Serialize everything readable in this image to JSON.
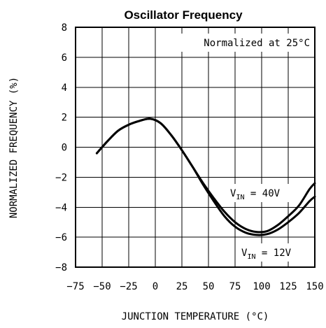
{
  "chart_data": {
    "type": "line",
    "title": "Oscillator Frequency",
    "xlabel": "JUNCTION TEMPERATURE (°C)",
    "ylabel": "NORMALIZED FREQUENCY (%)",
    "xlim": [
      -75,
      150
    ],
    "ylim": [
      -8,
      8
    ],
    "xticks": [
      -75,
      -50,
      -25,
      0,
      25,
      50,
      75,
      100,
      125,
      150
    ],
    "yticks": [
      -8,
      -6,
      -4,
      -2,
      0,
      2,
      4,
      6,
      8
    ],
    "xtick_labels": [
      "−75",
      "−50",
      "−25",
      "0",
      "25",
      "50",
      "75",
      "100",
      "125",
      "150"
    ],
    "ytick_labels": [
      "−8",
      "−6",
      "−4",
      "−2",
      "0",
      "2",
      "4",
      "6",
      "8"
    ],
    "grid": true,
    "annotations": {
      "normalized": "Normalized at 25°C",
      "v40_prefix": "V",
      "v40_sub": "IN",
      "v40_value": " = 40V",
      "v12_prefix": "V",
      "v12_sub": "IN",
      "v12_value": " = 12V"
    },
    "series": [
      {
        "x": [
          -55,
          -45,
          -35,
          -25,
          -15,
          -5,
          5,
          15,
          25,
          35,
          45,
          55,
          65,
          75,
          85,
          95,
          105,
          115,
          125,
          135,
          145,
          150
        ],
        "y": [
          -0.4,
          0.4,
          1.1,
          1.5,
          1.75,
          1.9,
          1.6,
          0.8,
          -0.2,
          -1.3,
          -2.4,
          -3.4,
          -4.3,
          -5.0,
          -5.45,
          -5.65,
          -5.6,
          -5.2,
          -4.6,
          -3.9,
          -2.8,
          -2.4
        ]
      },
      {
        "x": [
          -55,
          -45,
          -35,
          -25,
          -15,
          -5,
          5,
          15,
          25,
          35,
          45,
          55,
          65,
          75,
          85,
          95,
          105,
          115,
          125,
          135,
          145,
          150
        ],
        "y": [
          -0.4,
          0.4,
          1.1,
          1.5,
          1.75,
          1.9,
          1.6,
          0.8,
          -0.2,
          -1.3,
          -2.5,
          -3.6,
          -4.6,
          -5.3,
          -5.7,
          -5.85,
          -5.8,
          -5.5,
          -5.0,
          -4.4,
          -3.6,
          -3.3
        ]
      }
    ]
  }
}
